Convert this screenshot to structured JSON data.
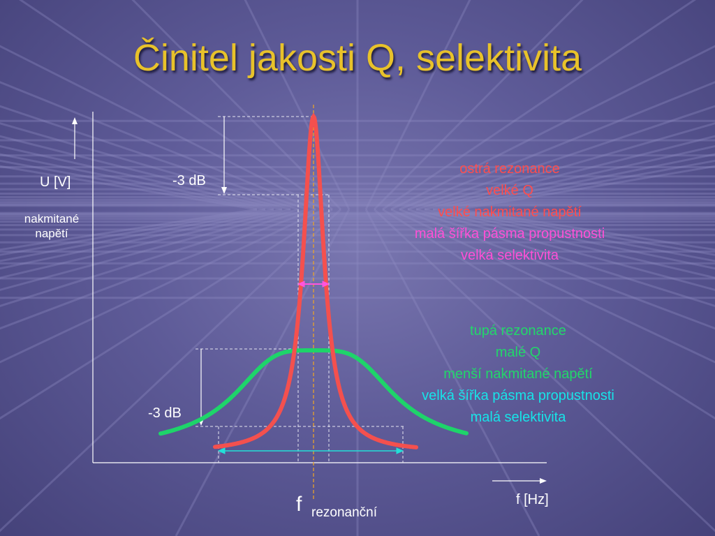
{
  "title": "Činitel jakosti Q, selektivita",
  "axis": {
    "y_label": "U [V]",
    "y_sublabel_1": "nakmitané",
    "y_sublabel_2": "napětí",
    "x_label": "f [Hz]",
    "f_main": "f",
    "f_sub": "rezonanční"
  },
  "markers": {
    "db_top": "-3 dB",
    "db_bottom": "-3 dB"
  },
  "sharp": {
    "lines": [
      "ostrá rezonance",
      "velké Q",
      "velké nakmitané napětí",
      "malá šířka pásma propustnosti",
      "velká selektivita"
    ],
    "colors": [
      "#ff4d4d",
      "#ff4d4d",
      "#ff4d4d",
      "#ff4fd6",
      "#ff4fd6"
    ],
    "curve_color": "#f4504e"
  },
  "blunt": {
    "lines": [
      "tupá rezonance",
      "malé Q",
      "menší nakmitané napětí",
      "velká šířka pásma propustnosti",
      "malá selektivita"
    ],
    "colors": [
      "#22d76a",
      "#22d76a",
      "#22d76a",
      "#17e4e8",
      "#17e4e8"
    ],
    "curve_color": "#1ed46a"
  },
  "colors": {
    "title": "#e8c22a",
    "center_line": "#e8a22a",
    "narrow_band_arrow": "#ff55dd",
    "wide_band_arrow": "#22e0d8"
  }
}
